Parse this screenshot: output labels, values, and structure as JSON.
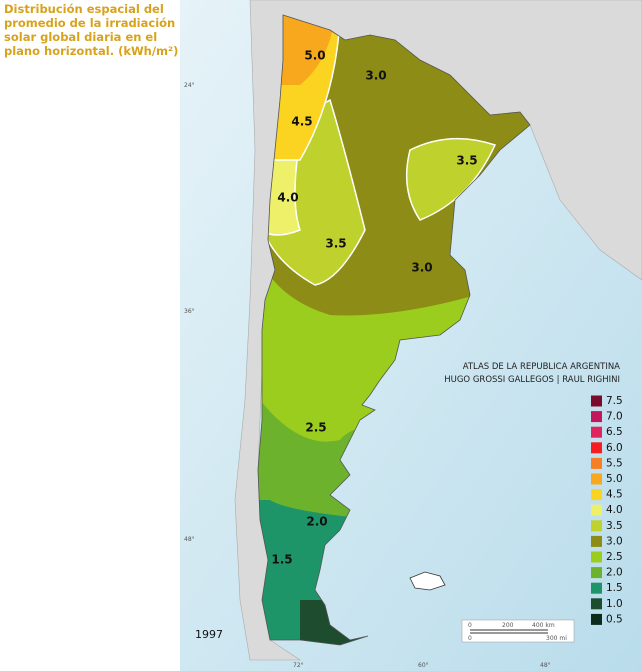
{
  "title": "Distribución espacial del promedio de la irradiación solar global diaria en el plano horizontal. (kWh/m²)",
  "map_labels": [
    "5.0",
    "3.0",
    "4.5",
    "3.5",
    "4.0",
    "3.5",
    "3.0",
    "2.5",
    "2.0",
    "1.5"
  ],
  "latitude_labels": [
    "24°",
    "36°",
    "48°"
  ],
  "longitude_labels": [
    "72°",
    "60°",
    "48°"
  ],
  "credit": [
    "ATLAS DE LA REPUBLICA ARGENTINA",
    "HUGO GROSSI GALLEGOS | RAUL RIGHINI"
  ],
  "year": "1997",
  "scale": [
    "0",
    "200",
    "400 km",
    "0",
    "300 mi"
  ],
  "legend": [
    {
      "label": "7.5",
      "color": "#7b0b2c"
    },
    {
      "label": "7.0",
      "color": "#c2185b"
    },
    {
      "label": "6.5",
      "color": "#e0245e"
    },
    {
      "label": "6.0",
      "color": "#f51d1d"
    },
    {
      "label": "5.5",
      "color": "#f57f22"
    },
    {
      "label": "5.0",
      "color": "#f8a81c"
    },
    {
      "label": "4.5",
      "color": "#fbd321"
    },
    {
      "label": "4.0",
      "color": "#eef06a"
    },
    {
      "label": "3.5",
      "color": "#bfd12c"
    },
    {
      "label": "3.0",
      "color": "#8c8c16"
    },
    {
      "label": "2.5",
      "color": "#9acd1e"
    },
    {
      "label": "2.0",
      "color": "#6cb22c"
    },
    {
      "label": "1.5",
      "color": "#1e9469"
    },
    {
      "label": "1.0",
      "color": "#1d4c2e"
    },
    {
      "label": "0.5",
      "color": "#0d2a1a"
    }
  ]
}
